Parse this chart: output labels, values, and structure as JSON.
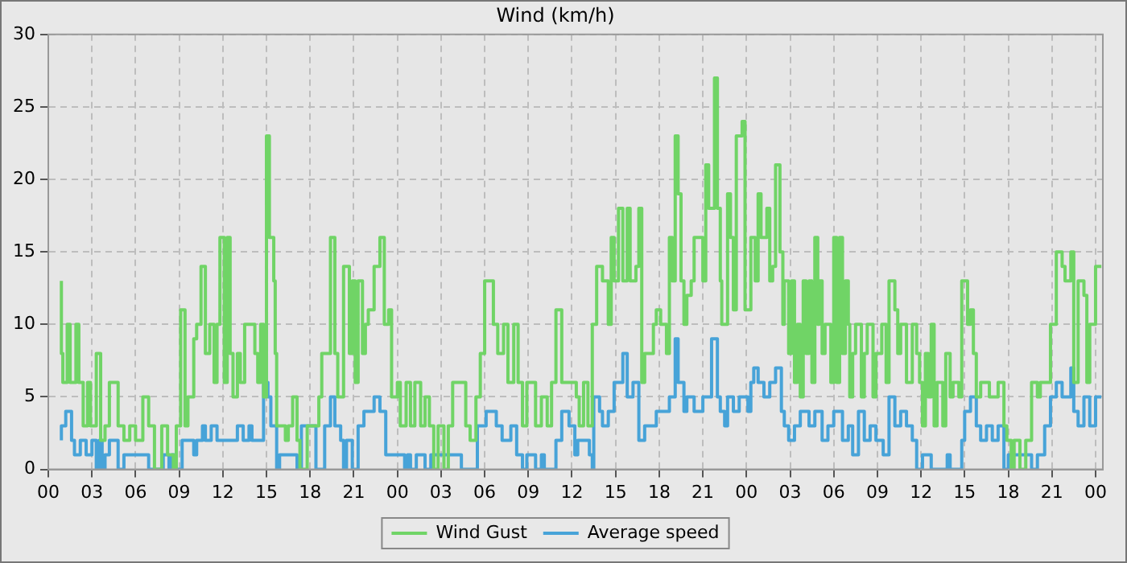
{
  "chart_data": {
    "type": "step",
    "title": "Wind (km/h)",
    "legend": "bottom",
    "grid": true,
    "marker": "none",
    "line_style": "solid",
    "xlim": [
      0,
      72.5
    ],
    "xticks": [
      {
        "value": 0,
        "label": "00"
      },
      {
        "value": 3,
        "label": "03"
      },
      {
        "value": 6,
        "label": "06"
      },
      {
        "value": 9,
        "label": "09"
      },
      {
        "value": 12,
        "label": "12"
      },
      {
        "value": 15,
        "label": "15"
      },
      {
        "value": 18,
        "label": "18"
      },
      {
        "value": 21,
        "label": "21"
      },
      {
        "value": 24,
        "label": "00"
      },
      {
        "value": 27,
        "label": "03"
      },
      {
        "value": 30,
        "label": "06"
      },
      {
        "value": 33,
        "label": "09"
      },
      {
        "value": 36,
        "label": "12"
      },
      {
        "value": 39,
        "label": "15"
      },
      {
        "value": 42,
        "label": "18"
      },
      {
        "value": 45,
        "label": "21"
      },
      {
        "value": 48,
        "label": "00"
      },
      {
        "value": 51,
        "label": "03"
      },
      {
        "value": 54,
        "label": "06"
      },
      {
        "value": 57,
        "label": "09"
      },
      {
        "value": 60,
        "label": "12"
      },
      {
        "value": 63,
        "label": "15"
      },
      {
        "value": 66,
        "label": "18"
      },
      {
        "value": 69,
        "label": "21"
      },
      {
        "value": 72,
        "label": "00"
      }
    ],
    "ylim": [
      0,
      30
    ],
    "yticks": [
      0,
      5,
      10,
      15,
      20,
      25,
      30
    ],
    "series": [
      {
        "name": "Wind Gust",
        "color": "#70d466",
        "x": [
          0.9,
          1.0,
          1.3,
          1.5,
          1.9,
          2.1,
          2.4,
          2.7,
          2.9,
          3.3,
          3.6,
          3.9,
          4.2,
          4.8,
          5.2,
          5.6,
          6.0,
          6.5,
          6.9,
          7.3,
          7.8,
          8.2,
          8.6,
          8.8,
          9.1,
          9.4,
          9.6,
          10.0,
          10.2,
          10.5,
          10.8,
          11.1,
          11.4,
          11.6,
          11.8,
          12.1,
          12.3,
          12.5,
          12.7,
          13.0,
          13.2,
          13.5,
          13.8,
          14.2,
          14.4,
          14.6,
          14.8,
          15.0,
          15.2,
          15.5,
          15.6,
          15.7,
          15.9,
          16.3,
          16.5,
          16.8,
          17.1,
          17.3,
          17.8,
          18.6,
          18.8,
          19.4,
          19.7,
          19.9,
          20.3,
          20.7,
          20.9,
          21.1,
          21.3,
          21.6,
          21.8,
          22.0,
          22.4,
          22.8,
          23.1,
          23.4,
          23.6,
          24.0,
          24.2,
          24.6,
          24.9,
          25.2,
          25.6,
          25.9,
          26.2,
          26.5,
          26.8,
          27.2,
          27.5,
          27.8,
          28.7,
          29.0,
          29.4,
          29.7,
          30.0,
          30.6,
          30.9,
          31.3,
          31.6,
          32.0,
          32.3,
          32.6,
          32.9,
          33.5,
          33.9,
          34.3,
          34.6,
          34.9,
          35.3,
          36.3,
          36.5,
          36.8,
          37.1,
          37.4,
          37.7,
          38.1,
          38.5,
          38.7,
          38.9,
          39.2,
          39.5,
          39.8,
          40.0,
          40.4,
          40.6,
          40.8,
          41.0,
          41.2,
          41.6,
          41.8,
          42.1,
          42.5,
          42.7,
          42.9,
          43.1,
          43.3,
          43.5,
          43.7,
          43.9,
          44.2,
          44.4,
          45.0,
          45.2,
          45.4,
          45.8,
          46.0,
          46.2,
          46.3,
          46.7,
          46.9,
          47.1,
          47.3,
          47.7,
          47.9,
          48.1,
          48.3,
          48.6,
          48.8,
          49.0,
          49.4,
          49.6,
          49.8,
          50.0,
          50.3,
          50.5,
          50.6,
          50.9,
          51.1,
          51.3,
          51.5,
          51.7,
          51.9,
          52.1,
          52.3,
          52.5,
          52.7,
          52.9,
          53.0,
          53.2,
          53.4,
          53.8,
          54.0,
          54.2,
          54.4,
          54.6,
          54.8,
          55.0,
          55.1,
          55.3,
          55.5,
          55.9,
          56.1,
          56.3,
          56.7,
          56.9,
          57.3,
          57.6,
          57.8,
          58.2,
          58.4,
          58.6,
          59.0,
          59.4,
          59.7,
          59.9,
          60.1,
          60.3,
          60.5,
          60.7,
          60.9,
          61.1,
          61.5,
          61.7,
          62.0,
          62.2,
          62.6,
          62.8,
          63.2,
          63.4,
          63.6,
          63.8,
          64.1,
          64.7,
          65.3,
          65.7,
          65.9,
          66.2,
          66.4,
          66.8,
          67.2,
          67.6,
          68.0,
          68.2,
          68.9,
          69.3,
          69.7,
          69.9,
          70.3,
          70.5,
          70.8,
          71.2,
          71.4,
          71.6,
          72.0,
          72.2,
          72.4
        ],
        "values": [
          13,
          8,
          6,
          10,
          6,
          10,
          6,
          3,
          6,
          3,
          8,
          2,
          3,
          6,
          3,
          2,
          3,
          2,
          5,
          3,
          0,
          3,
          1,
          0,
          3,
          11,
          3,
          5,
          9,
          10,
          14,
          8,
          10,
          6,
          10,
          16,
          6,
          16,
          8,
          5,
          8,
          6,
          10,
          10,
          8,
          6,
          10,
          5,
          23,
          16,
          13,
          8,
          3,
          3,
          2,
          3,
          5,
          2,
          0,
          3,
          5,
          8,
          16,
          8,
          5,
          14,
          8,
          13,
          6,
          13,
          8,
          10,
          11,
          14,
          16,
          10,
          11,
          5,
          6,
          3,
          6,
          3,
          6,
          3,
          5,
          3,
          0,
          3,
          0,
          3,
          6,
          3,
          2,
          5,
          8,
          13,
          10,
          8,
          10,
          6,
          10,
          6,
          3,
          6,
          3,
          5,
          3,
          6,
          11,
          6,
          5,
          3,
          6,
          3,
          10,
          14,
          13,
          10,
          16,
          13,
          18,
          13,
          18,
          13,
          14,
          18,
          6,
          8,
          8,
          10,
          11,
          10,
          8,
          16,
          13,
          23,
          19,
          13,
          10,
          12,
          13,
          16,
          13,
          21,
          18,
          27,
          18,
          13,
          10,
          19,
          16,
          11,
          23,
          24,
          11,
          11,
          16,
          13,
          19,
          16,
          18,
          13,
          14,
          21,
          15,
          10,
          13,
          8,
          13,
          6,
          10,
          5,
          13,
          8,
          13,
          6,
          16,
          10,
          13,
          8,
          10,
          6,
          16,
          6,
          16,
          8,
          13,
          10,
          5,
          8,
          10,
          5,
          8,
          10,
          5,
          8,
          10,
          6,
          13,
          11,
          8,
          10,
          6,
          10,
          8,
          6,
          3,
          8,
          5,
          10,
          3,
          6,
          3,
          8,
          5,
          6,
          5,
          13,
          10,
          11,
          8,
          5,
          6,
          5,
          6,
          3,
          2,
          0,
          2,
          0,
          2,
          6,
          5,
          6,
          10,
          15,
          14,
          13,
          15,
          6,
          13,
          12,
          6,
          10,
          14,
          14
        ]
      },
      {
        "name": "Average speed",
        "color": "#47a3d8",
        "x": [
          0.9,
          1.2,
          1.6,
          1.8,
          2.2,
          2.6,
          3.0,
          3.3,
          3.5,
          3.7,
          3.9,
          4.2,
          4.8,
          5.2,
          6.9,
          7.9,
          8.3,
          8.5,
          8.8,
          9.2,
          10.0,
          10.2,
          10.6,
          10.8,
          11.2,
          11.6,
          12.7,
          13.0,
          13.4,
          13.8,
          14.0,
          14.8,
          15.1,
          15.3,
          15.7,
          15.9,
          17.1,
          17.4,
          18.4,
          19.0,
          19.4,
          19.7,
          20.1,
          20.3,
          20.5,
          20.9,
          21.3,
          21.7,
          22.4,
          22.8,
          23.2,
          24.0,
          24.5,
          24.7,
          24.9,
          25.3,
          25.9,
          26.3,
          28.4,
          29.5,
          30.1,
          30.8,
          31.2,
          31.8,
          32.2,
          32.6,
          32.9,
          33.5,
          33.9,
          34.1,
          34.9,
          35.3,
          35.8,
          36.2,
          36.4,
          37.2,
          37.4,
          37.5,
          37.9,
          38.1,
          38.5,
          38.9,
          39.5,
          39.8,
          40.2,
          40.6,
          41.0,
          41.8,
          42.7,
          43.1,
          43.3,
          43.7,
          43.9,
          44.4,
          45.0,
          45.6,
          46.0,
          46.2,
          46.5,
          46.7,
          47.1,
          47.5,
          48.1,
          48.3,
          48.5,
          48.8,
          49.2,
          49.6,
          50.0,
          50.4,
          50.6,
          50.9,
          51.3,
          51.7,
          52.3,
          52.7,
          53.2,
          53.6,
          54.0,
          54.6,
          55.0,
          55.3,
          55.7,
          56.1,
          56.5,
          56.9,
          57.4,
          57.8,
          58.2,
          58.6,
          59.0,
          59.4,
          59.7,
          60.1,
          60.7,
          61.8,
          62.0,
          62.8,
          63.0,
          63.4,
          63.8,
          64.1,
          64.5,
          64.9,
          65.3,
          65.7,
          66.0,
          67.6,
          68.0,
          68.5,
          68.9,
          69.3,
          69.7,
          70.3,
          70.5,
          70.8,
          71.2,
          71.6,
          72.0,
          72.2,
          72.4
        ],
        "values": [
          2,
          3,
          4,
          2,
          1,
          2,
          1,
          2,
          0,
          2,
          0,
          1,
          2,
          0,
          1,
          0,
          1,
          0,
          1,
          0,
          2,
          1,
          2,
          3,
          2,
          3,
          2,
          2,
          3,
          2,
          3,
          2,
          6,
          5,
          3,
          0,
          1,
          0,
          3,
          0,
          3,
          5,
          3,
          2,
          0,
          2,
          0,
          3,
          4,
          5,
          4,
          1,
          1,
          0,
          1,
          0,
          1,
          0,
          1,
          0,
          3,
          4,
          3,
          2,
          3,
          1,
          0,
          1,
          0,
          1,
          0,
          2,
          4,
          3,
          1,
          2,
          1,
          0,
          5,
          4,
          3,
          4,
          6,
          8,
          5,
          6,
          2,
          3,
          4,
          5,
          9,
          6,
          4,
          5,
          4,
          5,
          9,
          5,
          4,
          3,
          5,
          4,
          5,
          4,
          6,
          7,
          6,
          5,
          6,
          7,
          4,
          3,
          2,
          3,
          4,
          3,
          4,
          2,
          3,
          4,
          2,
          3,
          1,
          4,
          2,
          3,
          2,
          1,
          5,
          3,
          4,
          3,
          2,
          0,
          1,
          0,
          1,
          0,
          2,
          4,
          5,
          3,
          2,
          3,
          2,
          3,
          0,
          1,
          0,
          1,
          3,
          5,
          6,
          5,
          7,
          4,
          3,
          5,
          3,
          5,
          5
        ]
      }
    ]
  }
}
